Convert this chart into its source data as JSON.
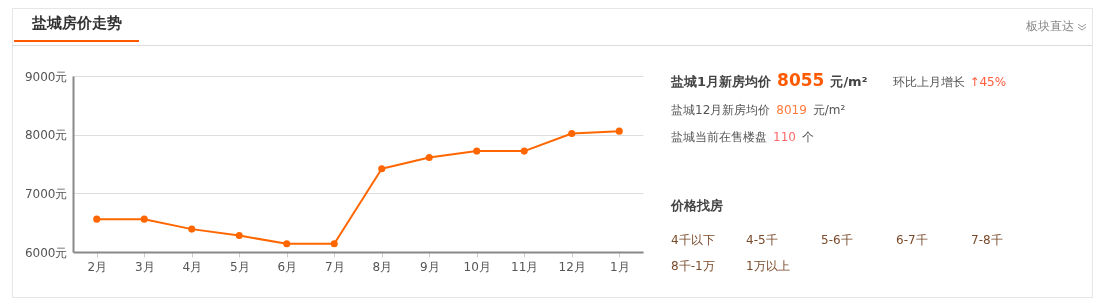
{
  "chart_data": [
    {
      "type": "line",
      "title": "盐城房价走势",
      "annotations": [
        "板块直达"
      ],
      "categories": [
        "2月",
        "3月",
        "4月",
        "5月",
        "6月",
        "7月",
        "8月",
        "9月",
        "10月",
        "11月",
        "12月",
        "1月"
      ],
      "series": [
        {
          "color": "#ff6600",
          "values": [
            6560,
            6560,
            6390,
            6280,
            6140,
            6140,
            7420,
            7610,
            7720,
            7720,
            8020,
            8060
          ]
        }
      ],
      "ylim": [
        6000,
        9000
      ],
      "yticks": [
        {
          "value": 6000,
          "label": "6000元"
        },
        {
          "value": 7000,
          "label": "7000元"
        },
        {
          "value": 8000,
          "label": "8000元"
        },
        {
          "value": 9000,
          "label": "9000元"
        }
      ],
      "grid": "y",
      "marker": "circle",
      "line_style": "solid",
      "legend": false
    },
    {
      "type": "other",
      "annotations": [
        "盐城1月新房均价",
        "8055",
        "元/m²",
        "环比上月增长",
        "↑45%",
        "盐城12月新房均价",
        "8019",
        "元/m²",
        "盐城当前在售楼盘",
        "110",
        "个",
        "价格找房",
        "4千以下",
        "4-5千",
        "5-6千",
        "6-7千",
        "7-8千",
        "8千-1万",
        "1万以上"
      ]
    }
  ]
}
